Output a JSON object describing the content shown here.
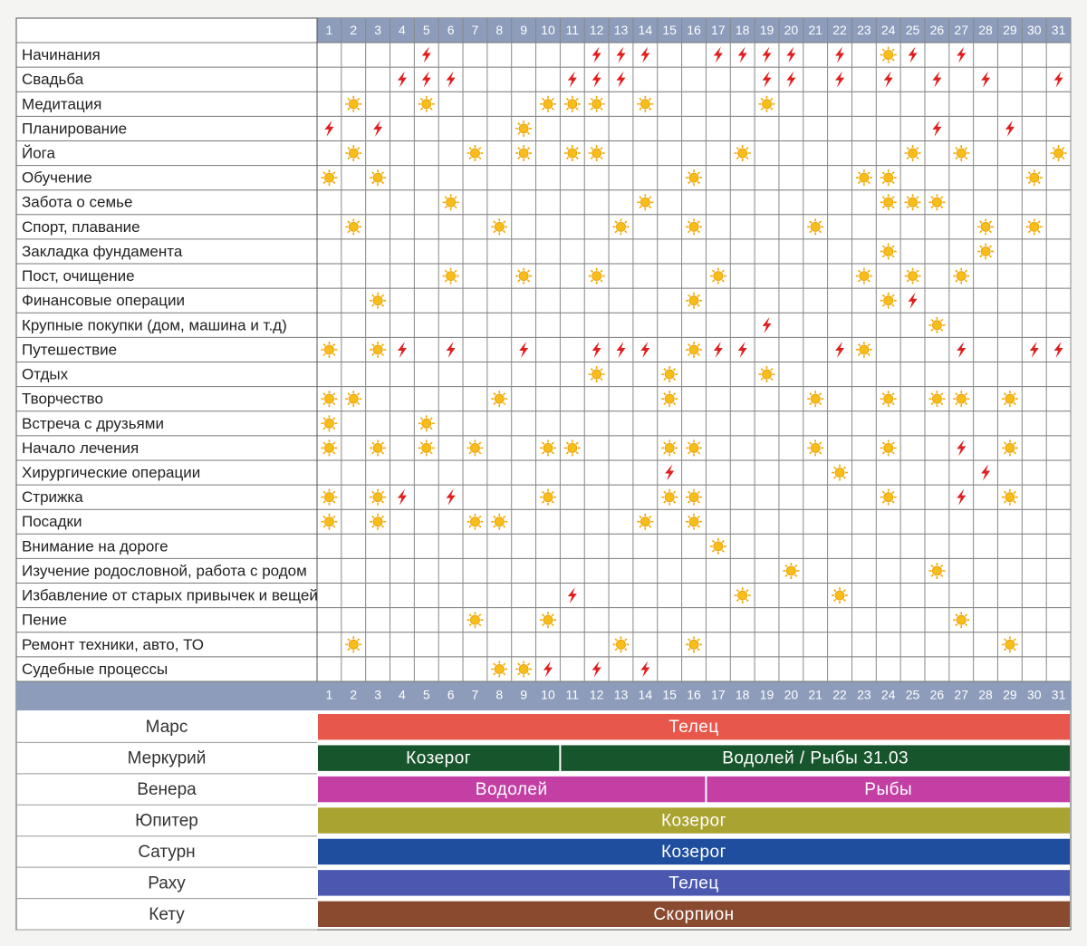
{
  "days": [
    1,
    2,
    3,
    4,
    5,
    6,
    7,
    8,
    9,
    10,
    11,
    12,
    13,
    14,
    15,
    16,
    17,
    18,
    19,
    20,
    21,
    22,
    23,
    24,
    25,
    26,
    27,
    28,
    29,
    30,
    31
  ],
  "activities": [
    {
      "label": "Начинания",
      "favorable": [
        24
      ],
      "unfavorable": [
        5,
        12,
        13,
        14,
        17,
        18,
        19,
        20,
        22,
        25,
        27
      ]
    },
    {
      "label": "Свадьба",
      "favorable": [],
      "unfavorable": [
        4,
        5,
        6,
        11,
        12,
        13,
        19,
        20,
        22,
        24,
        26,
        28,
        31
      ]
    },
    {
      "label": "Медитация",
      "favorable": [
        2,
        5,
        10,
        11,
        12,
        14,
        19
      ],
      "unfavorable": []
    },
    {
      "label": "Планирование",
      "favorable": [
        9
      ],
      "unfavorable": [
        1,
        3,
        26,
        29
      ]
    },
    {
      "label": "Йога",
      "favorable": [
        2,
        7,
        9,
        11,
        12,
        18,
        25,
        27,
        31
      ],
      "unfavorable": []
    },
    {
      "label": "Обучение",
      "favorable": [
        1,
        3,
        16,
        23,
        24,
        30
      ],
      "unfavorable": []
    },
    {
      "label": "Забота о семье",
      "favorable": [
        6,
        14,
        24,
        25,
        26
      ],
      "unfavorable": []
    },
    {
      "label": "Спорт, плавание",
      "favorable": [
        2,
        8,
        13,
        16,
        21,
        28,
        30
      ],
      "unfavorable": []
    },
    {
      "label": "Закладка фундамента",
      "favorable": [
        24,
        28
      ],
      "unfavorable": []
    },
    {
      "label": "Пост, очищение",
      "favorable": [
        6,
        9,
        12,
        17,
        23,
        25,
        27
      ],
      "unfavorable": []
    },
    {
      "label": "Финансовые операции",
      "favorable": [
        3,
        16,
        24
      ],
      "unfavorable": [
        25
      ]
    },
    {
      "label": "Крупные покупки (дом, машина и т.д)",
      "favorable": [
        26
      ],
      "unfavorable": [
        19
      ]
    },
    {
      "label": "Путешествие",
      "favorable": [
        1,
        3,
        16,
        23
      ],
      "unfavorable": [
        4,
        6,
        9,
        12,
        13,
        14,
        17,
        18,
        22,
        27,
        30,
        31
      ]
    },
    {
      "label": "Отдых",
      "favorable": [
        12,
        15,
        19
      ],
      "unfavorable": []
    },
    {
      "label": "Творчество",
      "favorable": [
        1,
        2,
        8,
        15,
        21,
        24,
        26,
        27,
        29
      ],
      "unfavorable": []
    },
    {
      "label": "Встреча с друзьями",
      "favorable": [
        1,
        5
      ],
      "unfavorable": []
    },
    {
      "label": "Начало лечения",
      "favorable": [
        1,
        3,
        5,
        7,
        10,
        11,
        15,
        16,
        21,
        24,
        29
      ],
      "unfavorable": [
        27
      ]
    },
    {
      "label": "Хирургические операции",
      "favorable": [
        22
      ],
      "unfavorable": [
        15,
        28
      ]
    },
    {
      "label": "Стрижка",
      "favorable": [
        1,
        3,
        10,
        15,
        16,
        24,
        29
      ],
      "unfavorable": [
        4,
        6,
        27
      ]
    },
    {
      "label": "Посадки",
      "favorable": [
        1,
        3,
        7,
        8,
        14,
        16
      ],
      "unfavorable": []
    },
    {
      "label": "Внимание на дороге",
      "favorable": [
        17
      ],
      "unfavorable": []
    },
    {
      "label": "Изучение родословной, работа с родом",
      "favorable": [
        20,
        26
      ],
      "unfavorable": []
    },
    {
      "label": "Избавление от старых привычек и вещей",
      "favorable": [
        18,
        22
      ],
      "unfavorable": [
        11
      ]
    },
    {
      "label": "Пение",
      "favorable": [
        7,
        10,
        27
      ],
      "unfavorable": []
    },
    {
      "label": "Ремонт техники, авто, ТО",
      "favorable": [
        2,
        13,
        16,
        29
      ],
      "unfavorable": []
    },
    {
      "label": "Судебные процессы",
      "favorable": [
        8,
        9
      ],
      "unfavorable": [
        10,
        12,
        14
      ]
    }
  ],
  "planets": [
    {
      "name": "Марс",
      "color": "#e8574c",
      "segments": [
        {
          "sign": "Телец",
          "from": 1,
          "to": 31
        }
      ]
    },
    {
      "name": "Меркурий",
      "color": "#17552c",
      "segments": [
        {
          "sign": "Козерог",
          "from": 1,
          "to": 10
        },
        {
          "sign": "Водолей / Рыбы 31.03",
          "from": 11,
          "to": 31
        }
      ]
    },
    {
      "name": "Венера",
      "color": "#c43fa4",
      "segments": [
        {
          "sign": "Водолей",
          "from": 1,
          "to": 16
        },
        {
          "sign": "Рыбы",
          "from": 17,
          "to": 31
        }
      ]
    },
    {
      "name": "Юпитер",
      "color": "#a9a332",
      "segments": [
        {
          "sign": "Козерог",
          "from": 1,
          "to": 31
        }
      ]
    },
    {
      "name": "Сатурн",
      "color": "#1f4e9e",
      "segments": [
        {
          "sign": "Козерог",
          "from": 1,
          "to": 31
        }
      ]
    },
    {
      "name": "Раху",
      "color": "#4a58b0",
      "segments": [
        {
          "sign": "Телец",
          "from": 1,
          "to": 31
        }
      ]
    },
    {
      "name": "Кету",
      "color": "#8a4a30",
      "segments": [
        {
          "sign": "Скорпион",
          "from": 1,
          "to": 31
        }
      ]
    }
  ]
}
